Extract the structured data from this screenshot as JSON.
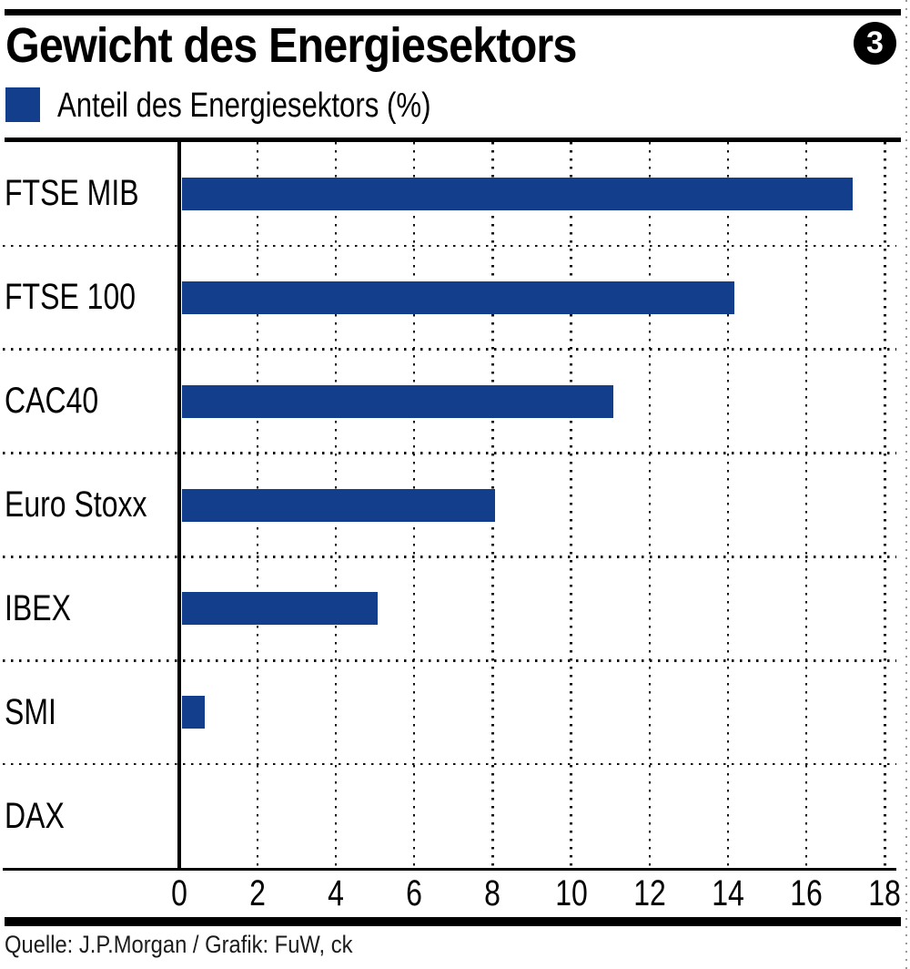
{
  "page": {
    "title": "Gewicht des Energiesektors",
    "badge": "3",
    "source": "Quelle: J.P.Morgan / Grafik: FuW, ck"
  },
  "legend": {
    "label": "Anteil des Energiesektors (%)",
    "swatch_color": "#123E8C"
  },
  "chart_data": {
    "type": "bar",
    "orientation": "horizontal",
    "title": "Gewicht des Energiesektors",
    "legend_entries": [
      "Anteil des Energiesektors (%)"
    ],
    "categories": [
      "FTSE MIB",
      "FTSE 100",
      "CAC40",
      "Euro Stoxx",
      "IBEX",
      "SMI",
      "DAX"
    ],
    "values": [
      17.1,
      14.1,
      11.0,
      8.0,
      5.0,
      0.6,
      0.0
    ],
    "xlabel": "",
    "ylabel": "",
    "xlim": [
      0,
      18
    ],
    "xticks": [
      0,
      2,
      4,
      6,
      8,
      10,
      12,
      14,
      16,
      18
    ],
    "grid": "dotted vertical gridlines at each x tick; dotted horizontal separators between category rows",
    "legend_position": "top-left",
    "bar_color": "#123E8C"
  }
}
